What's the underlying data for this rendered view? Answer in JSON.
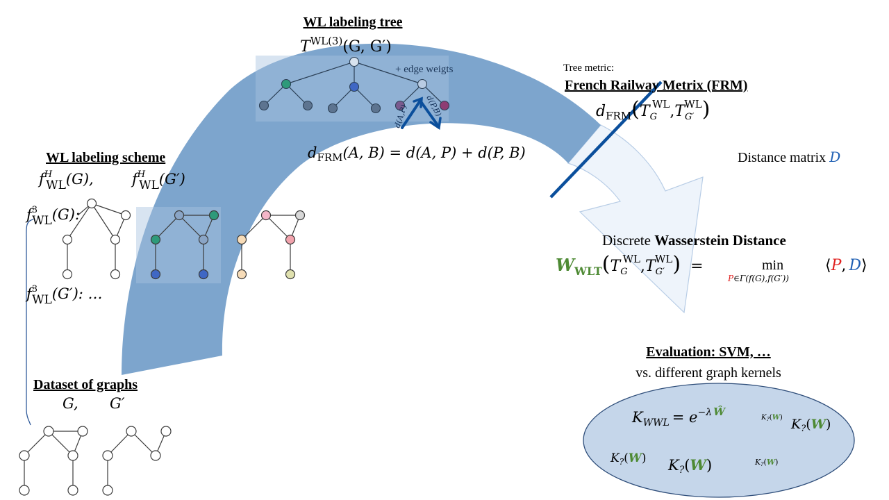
{
  "sections": {
    "dataset": {
      "title": "Dataset of graphs",
      "g_label": "G,",
      "g_prime_label": "G′"
    },
    "labeling_scheme": {
      "title": "WL labeling scheme",
      "f_g": "f",
      "f_g_sup": "H",
      "f_g_sub": "WL",
      "f_g_arg": "(G),",
      "f_gp": "f",
      "f_gp_sup": "H",
      "f_gp_sub": "WL",
      "f_gp_arg": "(G′)",
      "f3_g": "f",
      "f3_g_sup": "3",
      "f3_g_sub": "WL",
      "f3_g_arg": "(G):",
      "f3_gp": "f",
      "f3_gp_sup": "3",
      "f3_gp_sub": "WL",
      "f3_gp_arg": "(G′): …"
    },
    "labeling_tree": {
      "title": "WL labeling tree",
      "t": "T",
      "t_sup": "WL(3)",
      "t_arg": "(G, G′)",
      "edge_weights": "+ edge weigts",
      "edge_label_a": "d(A,P)",
      "edge_label_b": "d(P,B)"
    },
    "frm_formula": {
      "d": "d",
      "sub": "FRM",
      "rest": "(A, B) = d(A, P) + d(P, B)"
    },
    "tree_metric": {
      "caption": "Tree metric:",
      "title": "French Railway Metrix (FRM)",
      "d": "d",
      "sub": "FRM",
      "t1": "T",
      "t1_sub": "G",
      "t1_sup": "WL",
      "comma": ",",
      "t2": "T",
      "t2_sub": "G′",
      "t2_sup": "WL"
    },
    "distance_matrix": {
      "label": "Distance matrix",
      "symbol": "D"
    },
    "wasserstein": {
      "title_plain": "Discrete",
      "title_bold": "Wasserstein Distance",
      "w": "W",
      "w_sub": "WLT",
      "t1": "T",
      "t1_sub": "G",
      "t1_sup": "WL",
      "t2": "T",
      "t2_sub": "G′",
      "t2_sup": "WL",
      "eq": "=",
      "min": "min",
      "p": "P",
      "min_sub": "∈Γ(f(G),f(G′))",
      "lang": "⟨",
      "p2": "P",
      "sep": ",",
      "d": "D",
      "rang": "⟩"
    },
    "evaluation": {
      "title": "Evaluation: SVM, …",
      "subtitle": "vs. different graph kernels",
      "kernel_main_k": "K",
      "kernel_main_sub": "WWL",
      "kernel_main_eq": "= e",
      "kernel_main_exp": "−λ",
      "kernel_main_what": "Ŵ",
      "kernel_k": "K",
      "kernel_q": "?",
      "kernel_open": "(",
      "kernel_w": "W",
      "kernel_close": ")"
    }
  },
  "colors": {
    "arc_fill": "#6f9bc8",
    "arrow_fill": "#eef4fb",
    "arrow_stroke": "#b8cde6",
    "dark_blue_line": "#0b4f9c",
    "accent_green": "#4e8a34",
    "accent_red": "#e0201f",
    "accent_blue": "#1f5fb3",
    "ellipse_fill": "#c5d6ea",
    "ellipse_stroke": "#2f4e7a",
    "node_teal": "#2e9a7a",
    "node_blue": "#3f67c4",
    "node_pink": "#f4b6c8",
    "node_rose": "#f2a3ad",
    "node_peach": "#f7dcb8",
    "node_olive": "#dfe0ae",
    "node_grey": "#d8d8d8",
    "node_slate": "#5d7490",
    "node_purple": "#7a5a8e",
    "node_plum": "#8e3d73"
  }
}
